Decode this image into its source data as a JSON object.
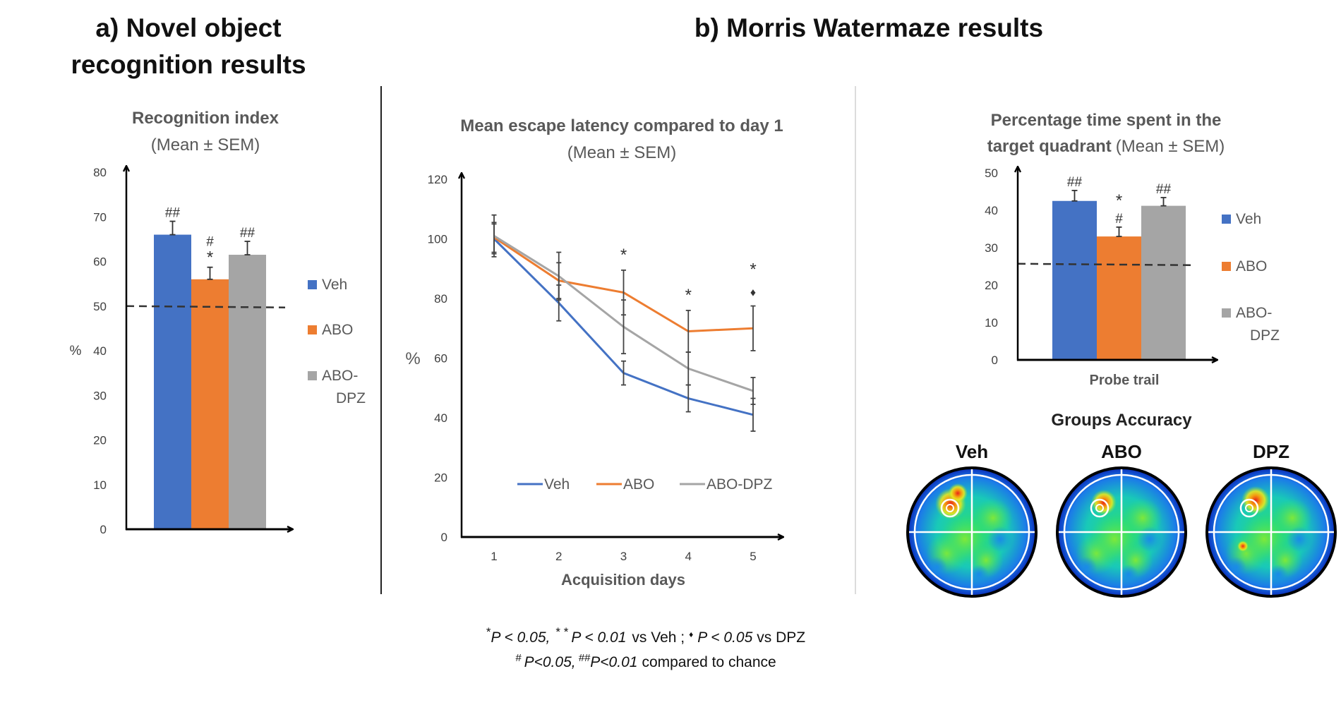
{
  "titles": {
    "a_line1": "a) Novel object",
    "a_line2": "recognition results",
    "b": "b) Morris Watermaze results"
  },
  "colors": {
    "Veh": "#4472C4",
    "ABO": "#ED7D31",
    "ABO-DPZ": "#A5A5A5"
  },
  "chart_data": [
    {
      "type": "bar",
      "title": "Recognition index",
      "subtitle": "(Mean ± SEM)",
      "ylabel": "%",
      "ylim": [
        0,
        80
      ],
      "yticks": [
        0,
        10,
        20,
        30,
        40,
        50,
        60,
        70,
        80
      ],
      "categories": [
        "Veh",
        "ABO",
        "ABO-DPZ"
      ],
      "legend": [
        "Veh",
        "ABO",
        "ABO-",
        "DPZ"
      ],
      "values": [
        66,
        56,
        61.5
      ],
      "errors": [
        3,
        2.7,
        3
      ],
      "annotations": [
        [
          "##"
        ],
        [
          "#",
          "*"
        ],
        [
          "##"
        ]
      ],
      "chance_line": 50,
      "legend_position": "right"
    },
    {
      "type": "line",
      "title": "Mean escape latency compared to day 1",
      "subtitle": "(Mean ± SEM)",
      "xlabel": "Acquisition days",
      "ylabel": "%",
      "ylim": [
        0,
        120
      ],
      "yticks": [
        0,
        20,
        40,
        60,
        80,
        100,
        120
      ],
      "x": [
        1,
        2,
        3,
        4,
        5
      ],
      "series": [
        {
          "name": "Veh",
          "values": [
            100,
            78.5,
            55,
            46.5,
            41
          ],
          "errors": [
            5,
            6,
            4,
            4.5,
            5.5
          ]
        },
        {
          "name": "ABO",
          "values": [
            100.5,
            86,
            82,
            69,
            70
          ],
          "errors": [
            5,
            6,
            7.5,
            7,
            7.5
          ]
        },
        {
          "name": "ABO-DPZ",
          "values": [
            101,
            87.5,
            70.5,
            56.5,
            49
          ],
          "errors": [
            7,
            8,
            9,
            5.5,
            4.5
          ]
        }
      ],
      "annotations": [
        {
          "x": 3,
          "label": "*"
        },
        {
          "x": 4,
          "label": "*"
        },
        {
          "x": 5,
          "label": "*"
        },
        {
          "x": 5,
          "label": "♦"
        }
      ],
      "legend_position": "bottom-inside"
    },
    {
      "type": "bar",
      "title_bold": "Percentage time spent in the",
      "title_bold2": "target quadrant",
      "subtitle": "(Mean ± SEM)",
      "xlabel": "Probe trail",
      "ylim": [
        0,
        50
      ],
      "yticks": [
        0,
        10,
        20,
        30,
        40,
        50
      ],
      "categories": [
        "Veh",
        "ABO",
        "ABO-DPZ"
      ],
      "legend": [
        "Veh",
        "ABO",
        "ABO-",
        "DPZ"
      ],
      "values": [
        42.5,
        33,
        41.2
      ],
      "errors": [
        2.8,
        2.5,
        2.2
      ],
      "annotations": [
        [
          "##"
        ],
        [
          "*",
          "#"
        ],
        [
          "##"
        ]
      ],
      "chance_line": 25.7,
      "legend_position": "right"
    }
  ],
  "heatmaps": {
    "title": "Groups Accuracy",
    "labels": [
      "Veh",
      "ABO",
      "DPZ"
    ]
  },
  "footnote": {
    "l1_s1": "*",
    "l1_t1": "P < 0.05,",
    "l1_s2": "* *",
    "l1_t2": "P < 0.01",
    "l1_t3": "vs Veh ;",
    "l1_s3": "♦",
    "l1_t4": "P < 0.05",
    "l1_t5": "vs DPZ",
    "l2_s1": "#",
    "l2_t1": "P<0.05,",
    "l2_s2": "##",
    "l2_t2": "P<0.01",
    "l2_t3": "compared to chance"
  }
}
